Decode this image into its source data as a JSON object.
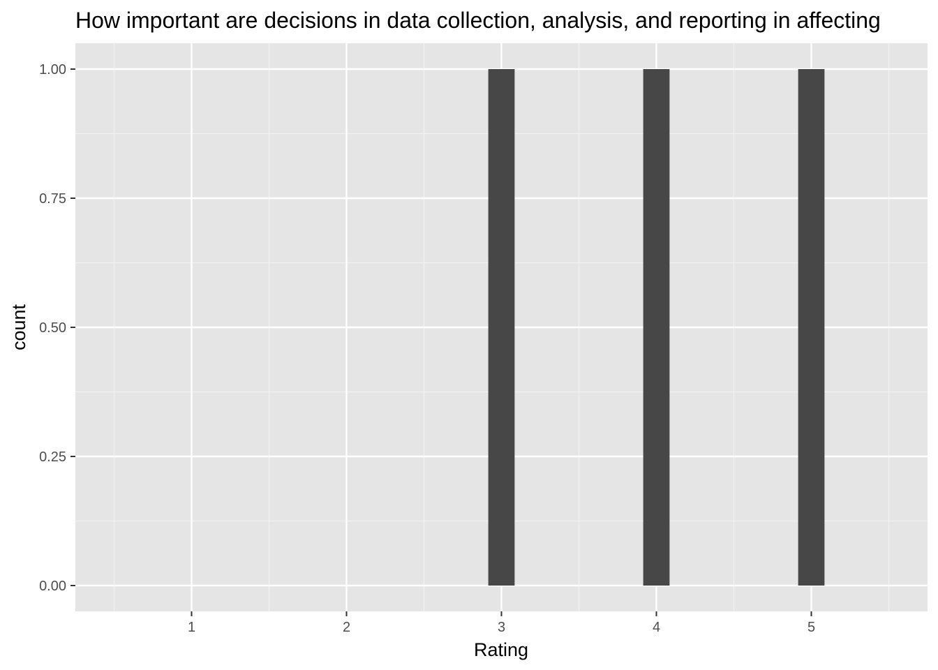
{
  "chart_data": {
    "type": "bar",
    "title": "How important are decisions in data collection, analysis, and reporting in affecting",
    "xlabel": "Rating",
    "ylabel": "count",
    "categories": [
      "1",
      "2",
      "3",
      "4",
      "5"
    ],
    "x": [
      1,
      2,
      3,
      4,
      5
    ],
    "bars": [
      {
        "x": 3,
        "count": 1
      },
      {
        "x": 4,
        "count": 1
      },
      {
        "x": 5,
        "count": 1
      }
    ],
    "xlim": [
      0.25,
      5.75
    ],
    "ylim": [
      -0.05,
      1.05
    ],
    "y_ticks": [
      0,
      0.25,
      0.5,
      0.75,
      1
    ],
    "y_tick_labels": [
      "0.00",
      "0.25",
      "0.50",
      "0.75",
      "1.00"
    ],
    "x_ticks": [
      1,
      2,
      3,
      4,
      5
    ],
    "x_tick_labels": [
      "1",
      "2",
      "3",
      "4",
      "5"
    ],
    "bar_width": 0.17,
    "grid": true,
    "legend": "none",
    "colors": {
      "panel_background": "#e5e5e5",
      "grid_major": "#ffffff",
      "grid_minor": "#f2f2f2",
      "bar_fill": "#474747",
      "tick_label": "#4d4d4d",
      "tick_mark": "#333333",
      "text": "#000000"
    }
  }
}
